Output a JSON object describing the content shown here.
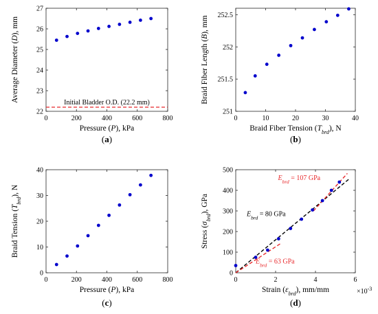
{
  "chart_data": [
    {
      "panel": "(a)",
      "type": "scatter",
      "xlabel": "Pressure (P), kPa",
      "ylabel": "Average Diameter (D), mm",
      "xlim": [
        0,
        800
      ],
      "ylim": [
        22,
        27
      ],
      "xticks": [
        0,
        200,
        400,
        600,
        800
      ],
      "yticks": [
        22,
        23,
        24,
        25,
        26,
        27
      ],
      "grid": false,
      "series": [
        {
          "x": [
            69,
            138,
            207,
            276,
            345,
            414,
            483,
            552,
            621,
            690
          ],
          "y": [
            25.45,
            25.63,
            25.78,
            25.9,
            26.02,
            26.12,
            26.22,
            26.32,
            26.42,
            26.5
          ],
          "color": "#0000cc"
        }
      ],
      "reference_line": {
        "y": 22.2,
        "label": "Initial Bladder O.D. (22.2 mm)",
        "color": "#e8282b",
        "style": "dashed"
      }
    },
    {
      "panel": "(b)",
      "type": "scatter",
      "xlabel": "Braid Fiber Tension (T_brd), N",
      "ylabel": "Braid Fiber Length (B), mm",
      "xlim": [
        0,
        40
      ],
      "ylim": [
        251,
        252.6
      ],
      "xticks": [
        0,
        10,
        20,
        30,
        40
      ],
      "yticks": [
        251,
        251.5,
        252,
        252.5
      ],
      "grid": false,
      "series": [
        {
          "x": [
            3.2,
            6.5,
            10.4,
            14.4,
            18.4,
            22.3,
            26.3,
            30.3,
            34.1,
            37.8
          ],
          "y": [
            251.29,
            251.55,
            251.73,
            251.87,
            252.02,
            252.14,
            252.27,
            252.39,
            252.49,
            252.59
          ],
          "color": "#0000cc"
        }
      ]
    },
    {
      "panel": "(c)",
      "type": "scatter",
      "xlabel": "Pressure (P), kPa",
      "ylabel": "Braid Tension (T_brd), N",
      "xlim": [
        0,
        800
      ],
      "ylim": [
        0,
        40
      ],
      "xticks": [
        0,
        200,
        400,
        600,
        800
      ],
      "yticks": [
        0,
        10,
        20,
        30,
        40
      ],
      "grid": false,
      "series": [
        {
          "x": [
            69,
            138,
            207,
            276,
            345,
            414,
            483,
            552,
            621,
            690
          ],
          "y": [
            3.2,
            6.5,
            10.4,
            14.4,
            18.4,
            22.3,
            26.3,
            30.3,
            34.1,
            37.8
          ],
          "color": "#0000cc"
        }
      ]
    },
    {
      "panel": "(d)",
      "type": "scatter",
      "xlabel": "Strain (ε_brd), mm/mm",
      "ylabel": "Stress (σ_brd), GPa",
      "x_multiplier": "×10",
      "x_multiplier_exp": "-3",
      "xlim": [
        0,
        6
      ],
      "ylim": [
        0,
        500
      ],
      "xticks": [
        0,
        2,
        4,
        6
      ],
      "yticks": [
        0,
        100,
        200,
        300,
        400,
        500
      ],
      "grid": false,
      "series": [
        {
          "x": [
            0.0,
            1.0,
            1.6,
            2.15,
            2.75,
            3.3,
            3.85,
            4.35,
            4.8,
            5.2
          ],
          "y": [
            35,
            75,
            110,
            165,
            215,
            260,
            305,
            350,
            400,
            440
          ],
          "color": "#0000cc"
        }
      ],
      "fit_lines": [
        {
          "label_main": "E",
          "label_sub": "brd",
          "label_rest": " = 80 GPa",
          "color": "#000000",
          "x": [
            0,
            5.7
          ],
          "y": [
            0,
            456
          ],
          "style": "dashed"
        },
        {
          "label_main": "E",
          "label_sub": "brd",
          "label_rest": " = 63 GPa",
          "color": "#e8282b",
          "x": [
            0,
            2.3
          ],
          "y": [
            0,
            145
          ],
          "style": "dashed"
        },
        {
          "label_main": "E",
          "label_sub": "brd",
          "label_rest": " = 107 GPa",
          "color": "#e8282b",
          "x": [
            3.9,
            5.6
          ],
          "y": [
            300,
            482
          ],
          "style": "dashed"
        }
      ]
    }
  ]
}
